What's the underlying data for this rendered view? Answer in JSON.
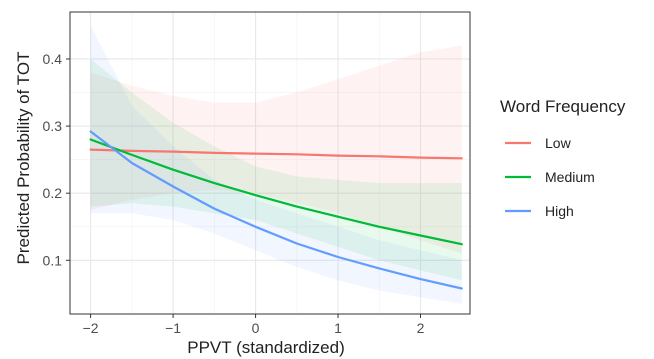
{
  "chart_data": {
    "type": "line",
    "title": "",
    "xlabel": "PPVT (standardized)",
    "ylabel": "Predicted Probability of TOT",
    "xlim": [
      -2.25,
      2.6
    ],
    "ylim": [
      0.02,
      0.47
    ],
    "x_ticks": [
      -2,
      -1,
      0,
      1,
      2
    ],
    "x_tick_labels": [
      "−2",
      "−1",
      "0",
      "1",
      "2"
    ],
    "y_ticks": [
      0.1,
      0.2,
      0.3,
      0.4
    ],
    "y_tick_labels": [
      "0.1",
      "0.2",
      "0.3",
      "0.4"
    ],
    "grid": true,
    "legend": {
      "title": "Word Frequency",
      "position": "right"
    },
    "x": [
      -2,
      -1.5,
      -1,
      -0.5,
      0,
      0.5,
      1,
      1.5,
      2,
      2.5
    ],
    "series": [
      {
        "name": "Low",
        "color": "#f8766d",
        "values": [
          0.265,
          0.263,
          0.262,
          0.26,
          0.259,
          0.258,
          0.256,
          0.255,
          0.253,
          0.252
        ],
        "lower": [
          0.175,
          0.19,
          0.2,
          0.205,
          0.2,
          0.185,
          0.17,
          0.15,
          0.13,
          0.11
        ],
        "upper": [
          0.38,
          0.36,
          0.345,
          0.335,
          0.335,
          0.35,
          0.37,
          0.39,
          0.41,
          0.42
        ]
      },
      {
        "name": "Medium",
        "color": "#00ba38",
        "values": [
          0.28,
          0.257,
          0.235,
          0.215,
          0.197,
          0.18,
          0.165,
          0.15,
          0.137,
          0.124
        ],
        "lower": [
          0.18,
          0.185,
          0.18,
          0.17,
          0.16,
          0.14,
          0.12,
          0.1,
          0.085,
          0.07
        ],
        "upper": [
          0.4,
          0.35,
          0.305,
          0.27,
          0.24,
          0.225,
          0.22,
          0.215,
          0.215,
          0.215
        ]
      },
      {
        "name": "High",
        "color": "#619cff",
        "values": [
          0.292,
          0.245,
          0.21,
          0.177,
          0.15,
          0.125,
          0.105,
          0.088,
          0.072,
          0.058
        ],
        "lower": [
          0.17,
          0.17,
          0.16,
          0.14,
          0.115,
          0.09,
          0.07,
          0.055,
          0.045,
          0.035
        ],
        "upper": [
          0.45,
          0.33,
          0.27,
          0.22,
          0.19,
          0.17,
          0.15,
          0.13,
          0.115,
          0.1
        ]
      }
    ]
  }
}
